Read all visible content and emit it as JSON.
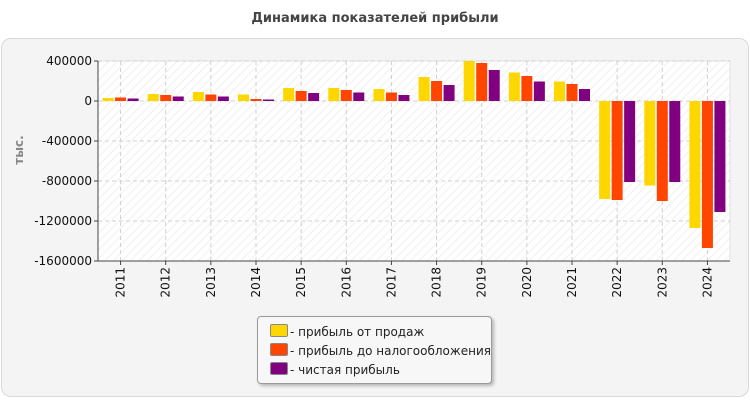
{
  "chart_data": {
    "type": "bar",
    "title": "Динамика показателей прибыли",
    "ylabel": "тыс.",
    "xlabel": "",
    "ylim": [
      -1600000,
      400000
    ],
    "yticks": [
      400000,
      0,
      -400000,
      -800000,
      -1200000,
      -1600000
    ],
    "ytick_labels": [
      "400000",
      "0",
      "-400000",
      "-800000",
      "-1200000",
      "-1600000"
    ],
    "categories": [
      "2011",
      "2012",
      "2013",
      "2014",
      "2015",
      "2016",
      "2017",
      "2018",
      "2019",
      "2020",
      "2021",
      "2022",
      "2023",
      "2024"
    ],
    "grid": true,
    "legend_position": "bottom",
    "series": [
      {
        "name": "- прибыль от продаж",
        "color": "#ffd700",
        "values": [
          30000,
          70000,
          90000,
          65000,
          130000,
          130000,
          120000,
          240000,
          400000,
          285000,
          195000,
          -980000,
          -845000,
          -1270000
        ]
      },
      {
        "name": "- прибыль до налогообложения",
        "color": "#ff4500",
        "values": [
          35000,
          60000,
          65000,
          20000,
          100000,
          110000,
          85000,
          200000,
          380000,
          250000,
          170000,
          -990000,
          -1000000,
          -1470000
        ]
      },
      {
        "name": "- чистая прибыль",
        "color": "#800080",
        "values": [
          25000,
          45000,
          45000,
          15000,
          80000,
          85000,
          60000,
          160000,
          310000,
          195000,
          120000,
          -810000,
          -810000,
          -1110000
        ]
      }
    ]
  }
}
